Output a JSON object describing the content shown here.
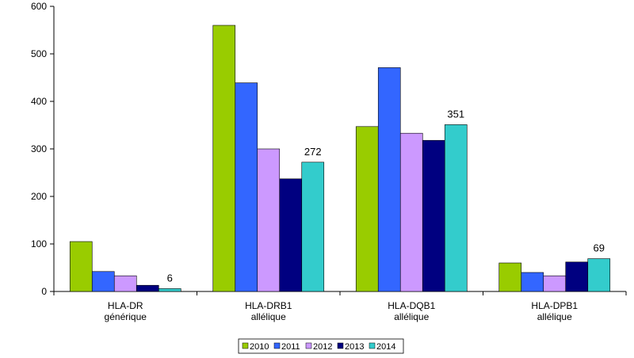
{
  "chart_data": {
    "type": "bar",
    "title": "",
    "xlabel": "",
    "ylabel": "",
    "ylim": [
      0,
      600
    ],
    "yticks": [
      0,
      100,
      200,
      300,
      400,
      500,
      600
    ],
    "grid": false,
    "legend_position": "bottom-center",
    "categories": [
      [
        "HLA-DR",
        "générique"
      ],
      [
        "HLA-DRB1",
        "allélique"
      ],
      [
        "HLA-DQB1",
        "allélique"
      ],
      [
        "HLA-DPB1",
        "allélique"
      ]
    ],
    "series": [
      {
        "name": "2010",
        "color": "#99CC00",
        "values": [
          105,
          560,
          347,
          60
        ]
      },
      {
        "name": "2011",
        "color": "#3366FF",
        "values": [
          42,
          439,
          471,
          40
        ]
      },
      {
        "name": "2012",
        "color": "#CC99FF",
        "values": [
          33,
          300,
          333,
          33
        ]
      },
      {
        "name": "2013",
        "color": "#000080",
        "values": [
          13,
          237,
          318,
          62
        ]
      },
      {
        "name": "2014",
        "color": "#33CCCC",
        "values": [
          6,
          272,
          351,
          69
        ]
      }
    ],
    "data_labels": [
      {
        "series": 4,
        "category": 0,
        "text": "6"
      },
      {
        "series": 4,
        "category": 1,
        "text": "272"
      },
      {
        "series": 4,
        "category": 2,
        "text": "351"
      },
      {
        "series": 4,
        "category": 3,
        "text": "69"
      }
    ]
  }
}
